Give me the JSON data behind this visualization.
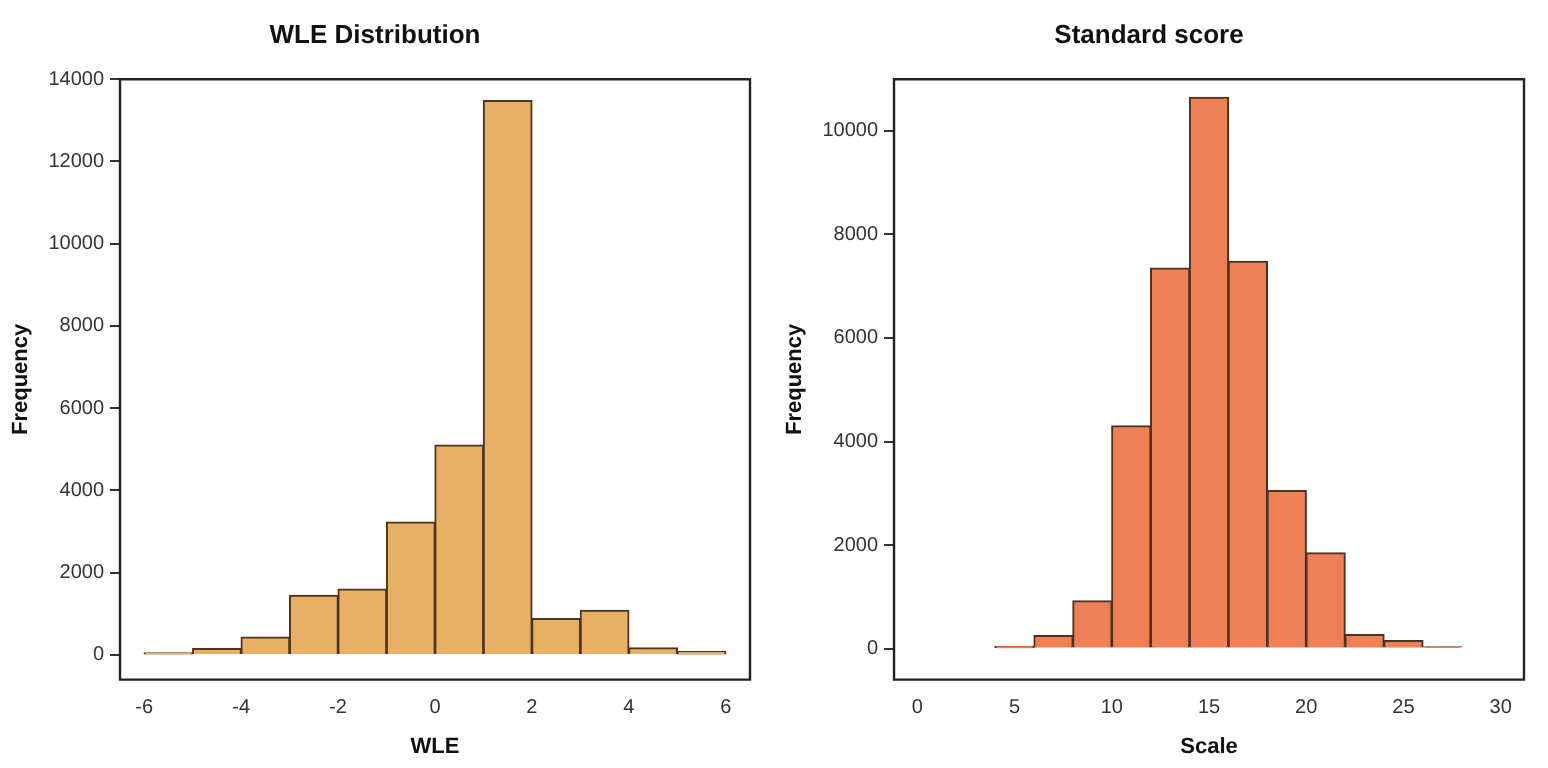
{
  "chart_data": [
    {
      "type": "histogram",
      "title": "WLE Distribution",
      "xlabel": "WLE",
      "ylabel": "Frequency",
      "bins": [
        -6,
        -5,
        -4,
        -3,
        -2,
        -1,
        0,
        1,
        2,
        3,
        4,
        5,
        6
      ],
      "values": [
        50,
        150,
        430,
        1450,
        1600,
        3230,
        5100,
        13480,
        880,
        1080,
        170,
        80
      ],
      "color": "#e8b064",
      "xlim": [
        -6.5,
        6.5
      ],
      "xticks": [
        -6,
        -4,
        -2,
        0,
        2,
        4,
        6
      ],
      "ylim": [
        -600,
        14000
      ],
      "yticks": [
        0,
        2000,
        4000,
        6000,
        8000,
        10000,
        12000,
        14000
      ],
      "grid": false,
      "legend": false
    },
    {
      "type": "histogram",
      "title": "Standard score",
      "xlabel": "Scale",
      "ylabel": "Frequency",
      "bins": [
        0,
        2,
        4,
        6,
        8,
        10,
        12,
        14,
        16,
        18,
        20,
        22,
        24,
        26,
        28,
        30
      ],
      "values": [
        0,
        0,
        40,
        250,
        920,
        4300,
        7350,
        10650,
        7480,
        3050,
        1850,
        270,
        150,
        30,
        0
      ],
      "color": "#ef7f55",
      "xlim": [
        -1.2,
        31.2
      ],
      "xticks": [
        0,
        5,
        10,
        15,
        20,
        25,
        30
      ],
      "ylim": [
        -600,
        11000
      ],
      "yticks": [
        0,
        2000,
        4000,
        6000,
        8000,
        10000
      ],
      "grid": false,
      "legend": false
    }
  ]
}
